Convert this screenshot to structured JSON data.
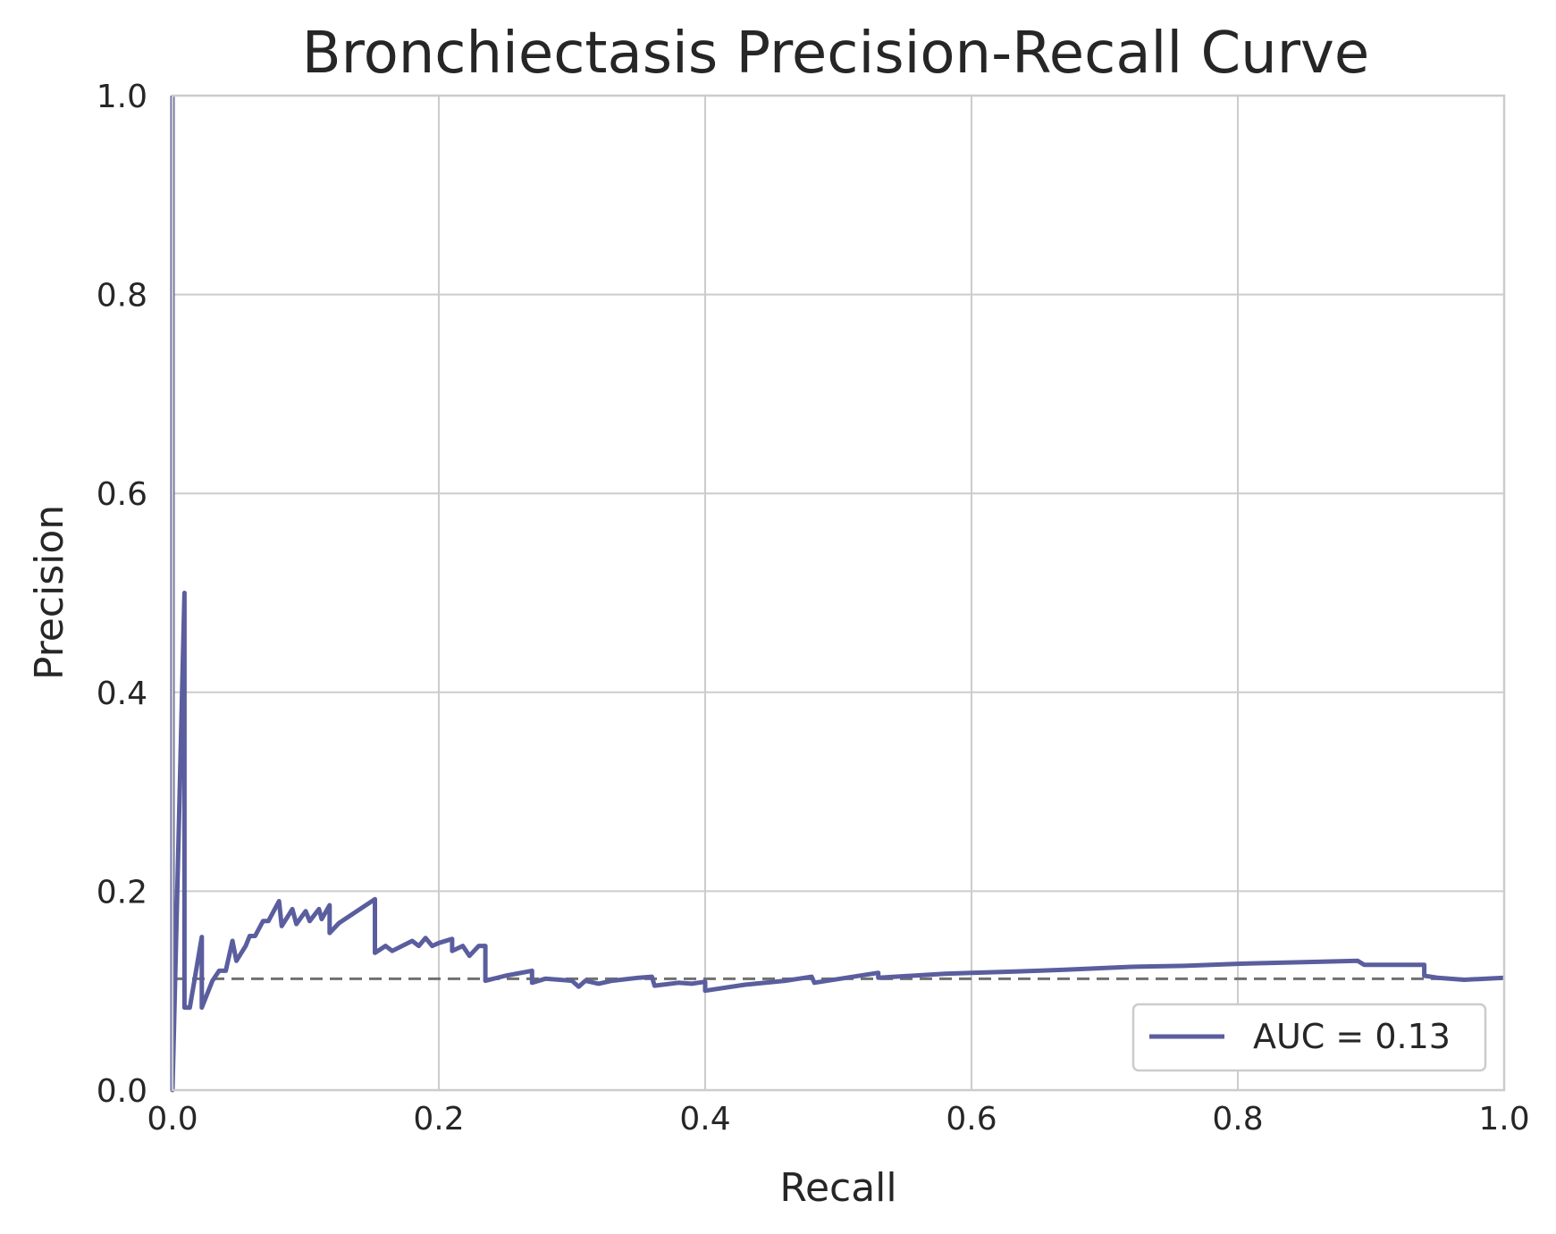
{
  "chart_data": {
    "type": "line",
    "title": "Bronchiectasis Precision-Recall Curve",
    "xlabel": "Recall",
    "ylabel": "Precision",
    "xlim": [
      0.0,
      1.0
    ],
    "ylim": [
      0.0,
      1.0
    ],
    "xticks": [
      "0.0",
      "0.2",
      "0.4",
      "0.6",
      "0.8",
      "1.0"
    ],
    "yticks": [
      "0.0",
      "0.2",
      "0.4",
      "0.6",
      "0.8",
      "1.0"
    ],
    "grid": true,
    "legend_position": "lower-right",
    "baseline": {
      "y": 0.112,
      "style": "dashed",
      "color": "#707070"
    },
    "series": [
      {
        "name": "AUC = 0.13",
        "color": "#5a5e9e",
        "points": [
          [
            0.0,
            1.0
          ],
          [
            0.0,
            0.0
          ],
          [
            0.009,
            0.5
          ],
          [
            0.009,
            0.083
          ],
          [
            0.013,
            0.083
          ],
          [
            0.022,
            0.154
          ],
          [
            0.022,
            0.083
          ],
          [
            0.03,
            0.11
          ],
          [
            0.035,
            0.12
          ],
          [
            0.04,
            0.12
          ],
          [
            0.045,
            0.15
          ],
          [
            0.048,
            0.13
          ],
          [
            0.055,
            0.145
          ],
          [
            0.058,
            0.155
          ],
          [
            0.062,
            0.155
          ],
          [
            0.068,
            0.17
          ],
          [
            0.072,
            0.17
          ],
          [
            0.08,
            0.19
          ],
          [
            0.082,
            0.165
          ],
          [
            0.09,
            0.182
          ],
          [
            0.093,
            0.167
          ],
          [
            0.1,
            0.18
          ],
          [
            0.103,
            0.17
          ],
          [
            0.11,
            0.182
          ],
          [
            0.112,
            0.172
          ],
          [
            0.118,
            0.186
          ],
          [
            0.118,
            0.158
          ],
          [
            0.125,
            0.168
          ],
          [
            0.152,
            0.192
          ],
          [
            0.152,
            0.138
          ],
          [
            0.16,
            0.145
          ],
          [
            0.165,
            0.14
          ],
          [
            0.18,
            0.15
          ],
          [
            0.185,
            0.145
          ],
          [
            0.19,
            0.153
          ],
          [
            0.195,
            0.145
          ],
          [
            0.2,
            0.148
          ],
          [
            0.21,
            0.152
          ],
          [
            0.21,
            0.14
          ],
          [
            0.218,
            0.145
          ],
          [
            0.223,
            0.135
          ],
          [
            0.23,
            0.145
          ],
          [
            0.235,
            0.145
          ],
          [
            0.235,
            0.11
          ],
          [
            0.25,
            0.115
          ],
          [
            0.27,
            0.12
          ],
          [
            0.27,
            0.108
          ],
          [
            0.28,
            0.112
          ],
          [
            0.3,
            0.11
          ],
          [
            0.305,
            0.104
          ],
          [
            0.31,
            0.11
          ],
          [
            0.32,
            0.107
          ],
          [
            0.33,
            0.11
          ],
          [
            0.35,
            0.113
          ],
          [
            0.36,
            0.114
          ],
          [
            0.362,
            0.105
          ],
          [
            0.38,
            0.108
          ],
          [
            0.39,
            0.107
          ],
          [
            0.4,
            0.109
          ],
          [
            0.4,
            0.1
          ],
          [
            0.43,
            0.106
          ],
          [
            0.46,
            0.11
          ],
          [
            0.48,
            0.114
          ],
          [
            0.482,
            0.108
          ],
          [
            0.53,
            0.118
          ],
          [
            0.53,
            0.113
          ],
          [
            0.58,
            0.117
          ],
          [
            0.6,
            0.118
          ],
          [
            0.65,
            0.12
          ],
          [
            0.67,
            0.121
          ],
          [
            0.72,
            0.124
          ],
          [
            0.76,
            0.125
          ],
          [
            0.8,
            0.127
          ],
          [
            0.86,
            0.129
          ],
          [
            0.89,
            0.13
          ],
          [
            0.895,
            0.126
          ],
          [
            0.94,
            0.126
          ],
          [
            0.94,
            0.115
          ],
          [
            0.95,
            0.113
          ],
          [
            0.97,
            0.111
          ],
          [
            1.0,
            0.113
          ]
        ]
      }
    ]
  }
}
